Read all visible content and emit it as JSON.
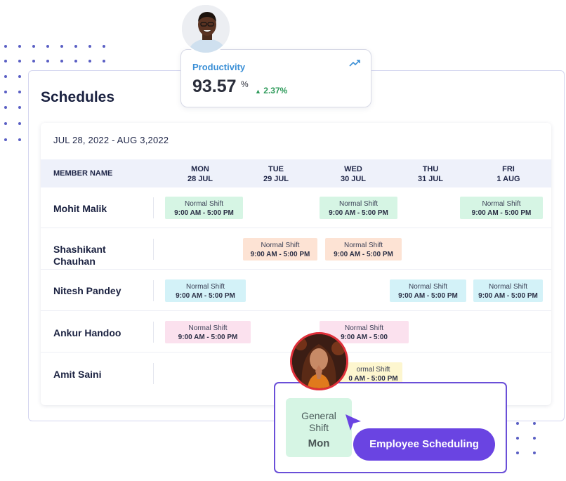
{
  "productivity": {
    "label": "Productivity",
    "value": "93.57",
    "unit": "%",
    "change": "2.37%",
    "trend_icon": "trend-up-icon",
    "up_arrow_icon": "triangle-up-icon"
  },
  "schedules": {
    "title": "Schedules",
    "date_range": "JUL 28, 2022 - AUG 3,2022",
    "member_header": "MEMBER NAME",
    "days": [
      {
        "day": "MON",
        "date": "28 JUL"
      },
      {
        "day": "TUE",
        "date": "29 JUL"
      },
      {
        "day": "WED",
        "date": "30 JUL"
      },
      {
        "day": "THU",
        "date": "31 JUL"
      },
      {
        "day": "FRI",
        "date": "1 AUG"
      }
    ],
    "members": [
      {
        "name": "Mohit Malik",
        "shifts": [
          {
            "label": "Normal Shift",
            "time": "9:00 AM - 5:00 PM"
          },
          {
            "label": "Normal Shift",
            "time": "9:00 AM - 5:00 PM"
          },
          {
            "label": "Normal Shift",
            "time": "9:00 AM - 5:00 PM"
          }
        ]
      },
      {
        "name": "Shashikant Chauhan",
        "shifts": [
          {
            "label": "Normal Shift",
            "time": "9:00 AM - 5:00 PM"
          },
          {
            "label": "Normal Shift",
            "time": "9:00 AM - 5:00 PM"
          }
        ]
      },
      {
        "name": "Nitesh Pandey",
        "shifts": [
          {
            "label": "Normal Shift",
            "time": "9:00 AM - 5:00 PM"
          },
          {
            "label": "Normal Shift",
            "time": "9:00 AM - 5:00 PM"
          },
          {
            "label": "Normal Shift",
            "time": "9:00 AM - 5:00 PM"
          }
        ]
      },
      {
        "name": "Ankur Handoo",
        "shifts": [
          {
            "label": "Normal Shift",
            "time": "9:00 AM - 5:00 PM"
          },
          {
            "label": "Normal Shift",
            "time": "9:00 AM - 5:00"
          }
        ]
      },
      {
        "name": "Amit Saini",
        "shifts": [
          {
            "label": "ormal Shift",
            "time": "0 AM - 5:00 PM"
          }
        ]
      }
    ]
  },
  "popup": {
    "card_line1": "General",
    "card_line2": "Shift",
    "card_day": "Mon",
    "button_label": "Employee Scheduling",
    "cursor_icon": "pointer-cursor-icon"
  },
  "colors": {
    "accent": "#6a44e2",
    "productivity_label": "#3a8fd6",
    "positive": "#2e9a5a",
    "shift_green": "#d6f5e4",
    "shift_peach": "#fde3d4",
    "shift_cyan": "#d3f2f8",
    "shift_pink": "#fbe1ee",
    "shift_yellow": "#fdf6cf"
  }
}
